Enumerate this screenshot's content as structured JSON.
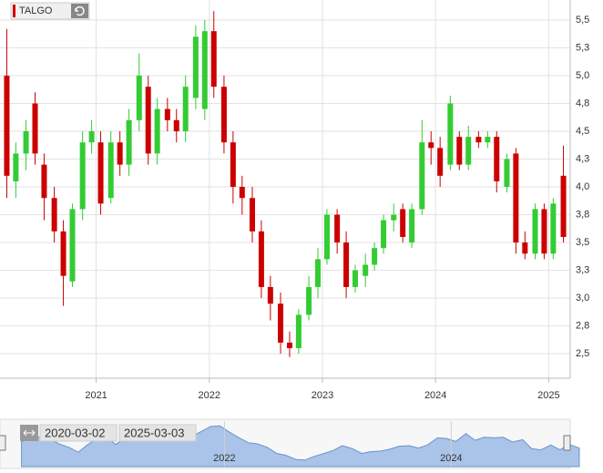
{
  "chart_data": {
    "type": "candlestick",
    "title": "TALGO",
    "x": [
      2020.21,
      2020.29,
      2020.38,
      2020.46,
      2020.54,
      2020.63,
      2020.71,
      2020.79,
      2020.88,
      2020.96,
      2021.04,
      2021.13,
      2021.21,
      2021.29,
      2021.38,
      2021.46,
      2021.54,
      2021.63,
      2021.71,
      2021.79,
      2021.88,
      2021.96,
      2022.04,
      2022.13,
      2022.21,
      2022.29,
      2022.38,
      2022.46,
      2022.54,
      2022.63,
      2022.71,
      2022.79,
      2022.88,
      2022.96,
      2023.04,
      2023.13,
      2023.21,
      2023.29,
      2023.38,
      2023.46,
      2023.54,
      2023.63,
      2023.71,
      2023.79,
      2023.88,
      2023.96,
      2024.04,
      2024.13,
      2024.21,
      2024.29,
      2024.38,
      2024.46,
      2024.54,
      2024.63,
      2024.71,
      2024.79,
      2024.88,
      2024.96,
      2025.04,
      2025.13
    ],
    "open": [
      5.0,
      4.05,
      4.3,
      4.75,
      4.2,
      3.9,
      3.6,
      3.15,
      3.8,
      4.4,
      4.4,
      3.9,
      4.4,
      4.2,
      4.6,
      4.9,
      4.3,
      4.7,
      4.6,
      4.5,
      4.8,
      4.7,
      5.4,
      4.9,
      4.4,
      4.0,
      3.9,
      3.6,
      3.1,
      2.95,
      2.6,
      2.55,
      2.85,
      3.1,
      3.35,
      3.75,
      3.5,
      3.1,
      3.2,
      3.3,
      3.45,
      3.7,
      3.8,
      3.5,
      3.8,
      4.4,
      4.35,
      4.2,
      4.45,
      4.2,
      4.45,
      4.4,
      4.45,
      4.0,
      4.3,
      3.5,
      3.4,
      3.8,
      3.4,
      4.1
    ],
    "high": [
      5.42,
      4.4,
      4.6,
      4.85,
      4.3,
      4.0,
      3.7,
      3.85,
      4.5,
      4.6,
      4.5,
      4.5,
      4.5,
      4.7,
      5.2,
      5.0,
      4.8,
      4.8,
      4.7,
      5.0,
      5.45,
      5.5,
      5.58,
      5.0,
      4.5,
      4.1,
      4.0,
      3.7,
      3.2,
      3.05,
      2.7,
      2.9,
      3.2,
      3.45,
      3.8,
      3.8,
      3.6,
      3.3,
      3.4,
      3.5,
      3.75,
      3.85,
      3.85,
      3.85,
      4.6,
      4.5,
      4.45,
      4.82,
      4.5,
      4.55,
      4.5,
      4.5,
      4.5,
      4.3,
      4.35,
      3.6,
      3.85,
      3.85,
      3.9,
      4.37
    ],
    "low": [
      3.9,
      3.9,
      4.15,
      4.2,
      3.7,
      3.5,
      2.93,
      3.1,
      3.7,
      4.3,
      3.75,
      3.85,
      4.1,
      4.1,
      4.5,
      4.2,
      4.2,
      4.5,
      4.4,
      4.4,
      4.7,
      4.6,
      4.8,
      4.3,
      3.85,
      3.75,
      3.5,
      3.0,
      2.8,
      2.5,
      2.47,
      2.5,
      2.8,
      3.0,
      3.3,
      3.4,
      3.0,
      3.05,
      3.1,
      3.25,
      3.4,
      3.6,
      3.5,
      3.45,
      3.75,
      4.2,
      4.0,
      4.15,
      4.15,
      4.15,
      4.35,
      4.35,
      3.95,
      3.95,
      3.4,
      3.35,
      3.35,
      3.35,
      3.35,
      3.5
    ],
    "close": [
      4.1,
      4.3,
      4.5,
      4.3,
      3.9,
      3.6,
      3.2,
      3.8,
      4.4,
      4.5,
      3.85,
      4.4,
      4.2,
      4.6,
      5.0,
      4.3,
      4.7,
      4.6,
      4.5,
      4.9,
      5.35,
      5.4,
      4.9,
      4.4,
      4.0,
      3.9,
      3.6,
      3.1,
      2.95,
      2.6,
      2.55,
      2.85,
      3.1,
      3.35,
      3.75,
      3.5,
      3.1,
      3.25,
      3.3,
      3.45,
      3.7,
      3.75,
      3.55,
      3.8,
      4.4,
      4.35,
      4.1,
      4.75,
      4.2,
      4.45,
      4.4,
      4.45,
      4.05,
      4.25,
      3.5,
      3.4,
      3.8,
      3.4,
      3.85,
      3.55
    ],
    "up_color": "#33cc33",
    "down_color": "#cc0000",
    "xlim": [
      2020.15,
      2025.19
    ],
    "xticks": [
      2021,
      2022,
      2023,
      2024,
      2025
    ],
    "ylim": [
      2.28,
      5.68
    ],
    "yticks": [
      {
        "value": 5.5,
        "label": "5,5"
      },
      {
        "value": 5.25,
        "label": "5,3"
      },
      {
        "value": 5.0,
        "label": "5,0"
      },
      {
        "value": 4.75,
        "label": "4,8"
      },
      {
        "value": 4.5,
        "label": "4,5"
      },
      {
        "value": 4.25,
        "label": "4,3"
      },
      {
        "value": 4.0,
        "label": "4,0"
      },
      {
        "value": 3.75,
        "label": "3,8"
      },
      {
        "value": 3.5,
        "label": "3,5"
      },
      {
        "value": 3.25,
        "label": "3,3"
      },
      {
        "value": 3.0,
        "label": "3,0"
      },
      {
        "value": 2.75,
        "label": "2,8"
      },
      {
        "value": 2.5,
        "label": "2,5"
      }
    ],
    "grid": true,
    "navigator": {
      "start": "2020-03-02",
      "end": "2025-03-03",
      "xlim": [
        2020.02,
        2025.05
      ],
      "ylim": [
        2.0,
        5.8
      ],
      "xticks": [
        2022,
        2024
      ],
      "color": "#a9c4e8"
    }
  }
}
